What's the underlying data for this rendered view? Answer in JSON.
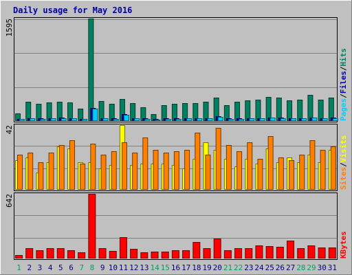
{
  "chart_data": [
    {
      "type": "bar",
      "title": "Daily usage for May 2016",
      "ymax_label": "1595",
      "legend": [
        {
          "text": "Pages",
          "color": "#00ccff"
        },
        {
          "text": "Files",
          "color": "#0000aa"
        },
        {
          "text": "Hits",
          "color": "#008060"
        }
      ],
      "categories": [
        "1",
        "2",
        "3",
        "4",
        "5",
        "6",
        "7",
        "8",
        "9",
        "10",
        "11",
        "12",
        "13",
        "14",
        "15",
        "16",
        "17",
        "18",
        "19",
        "20",
        "21",
        "22",
        "23",
        "24",
        "25",
        "26",
        "27",
        "28",
        "29",
        "30",
        "31"
      ],
      "series": [
        {
          "name": "Hits",
          "color": "#008060",
          "values": [
            120,
            300,
            270,
            290,
            300,
            290,
            190,
            1595,
            310,
            270,
            340,
            280,
            210,
            110,
            250,
            270,
            280,
            280,
            300,
            360,
            250,
            300,
            320,
            330,
            370,
            360,
            320,
            330,
            410,
            330,
            360
          ]
        },
        {
          "name": "Files",
          "color": "#0000aa",
          "values": [
            35,
            45,
            40,
            45,
            50,
            45,
            35,
            200,
            45,
            40,
            110,
            45,
            40,
            30,
            40,
            40,
            45,
            45,
            45,
            70,
            40,
            40,
            45,
            45,
            55,
            50,
            45,
            45,
            55,
            45,
            50
          ]
        },
        {
          "name": "Pages",
          "color": "#00ccff",
          "values": [
            30,
            40,
            35,
            40,
            45,
            40,
            30,
            190,
            40,
            35,
            100,
            40,
            35,
            25,
            35,
            35,
            40,
            40,
            40,
            60,
            35,
            35,
            40,
            40,
            50,
            45,
            40,
            40,
            50,
            40,
            45
          ]
        }
      ]
    },
    {
      "type": "bar",
      "ymax_label": "42",
      "legend": [
        {
          "text": "Sites",
          "color": "#ff8000"
        },
        {
          "text": "Visits",
          "color": "#ffff00"
        }
      ],
      "categories": [
        "1",
        "2",
        "3",
        "4",
        "5",
        "6",
        "7",
        "8",
        "9",
        "10",
        "11",
        "12",
        "13",
        "14",
        "15",
        "16",
        "17",
        "18",
        "19",
        "20",
        "21",
        "22",
        "23",
        "24",
        "25",
        "26",
        "27",
        "28",
        "29",
        "30",
        "31"
      ],
      "series": [
        {
          "name": "Visits",
          "color": "#ffff00",
          "values": [
            19,
            21,
            11,
            18,
            28,
            27,
            18,
            18,
            14,
            16,
            42,
            16,
            17,
            17,
            17,
            16,
            14,
            20,
            31,
            26,
            20,
            15,
            20,
            17,
            27,
            18,
            21,
            18,
            23,
            18,
            26
          ]
        },
        {
          "name": "Sites",
          "color": "#ff8000",
          "values": [
            23,
            24,
            18,
            24,
            29,
            32,
            17,
            30,
            23,
            25,
            31,
            24,
            34,
            26,
            24,
            25,
            26,
            37,
            23,
            40,
            29,
            25,
            31,
            20,
            35,
            21,
            19,
            23,
            32,
            26,
            28
          ]
        }
      ]
    },
    {
      "type": "bar",
      "ymax_label": "642",
      "legend": [
        {
          "text": "KBytes",
          "color": "#ff0000"
        }
      ],
      "categories": [
        "1",
        "2",
        "3",
        "4",
        "5",
        "6",
        "7",
        "8",
        "9",
        "10",
        "11",
        "12",
        "13",
        "14",
        "15",
        "16",
        "17",
        "18",
        "19",
        "20",
        "21",
        "22",
        "23",
        "24",
        "25",
        "26",
        "27",
        "28",
        "29",
        "30",
        "31"
      ],
      "series": [
        {
          "name": "KBytes",
          "color": "#ff0000",
          "values": [
            35,
            100,
            85,
            100,
            100,
            85,
            60,
            642,
            105,
            75,
            210,
            95,
            60,
            70,
            65,
            85,
            85,
            165,
            105,
            200,
            85,
            100,
            105,
            130,
            120,
            115,
            180,
            105,
            130,
            110,
            110
          ]
        }
      ],
      "weekend_days": [
        "1",
        "7",
        "8",
        "14",
        "15",
        "21",
        "22",
        "28",
        "29"
      ],
      "weekend_label_color": "#00a060",
      "weekday_label_color": "#000080"
    }
  ]
}
